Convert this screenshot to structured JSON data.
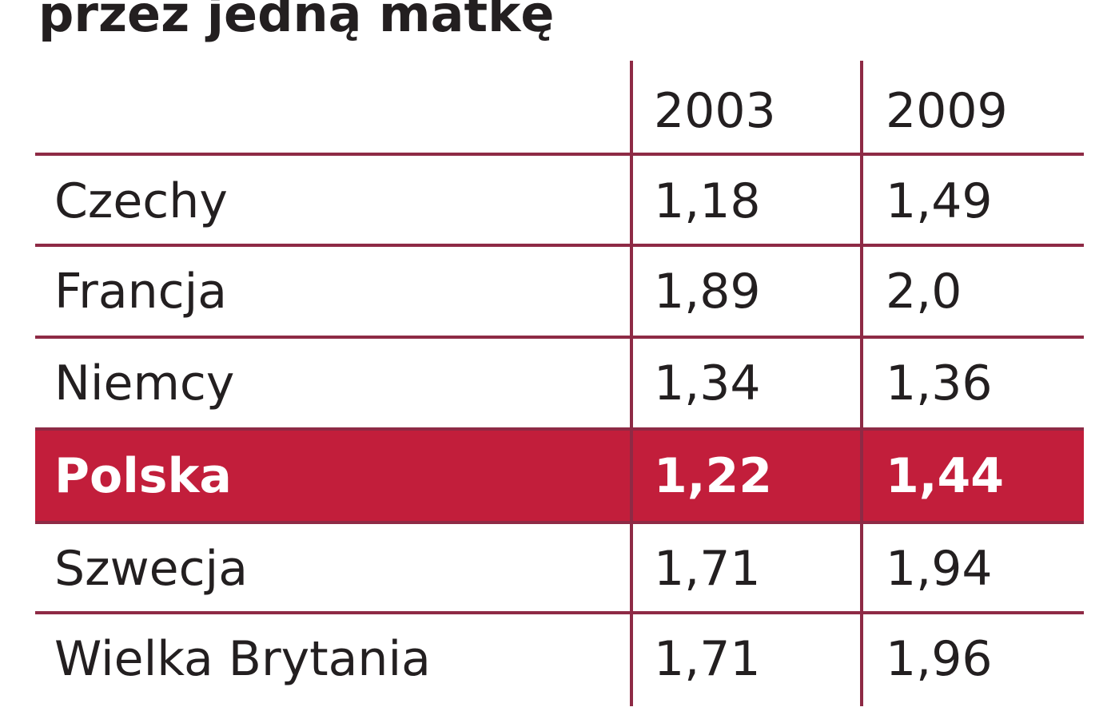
{
  "chart_data": {
    "type": "table",
    "title": "przez jedną matkę",
    "columns": [
      "",
      "2003",
      "2009"
    ],
    "rows": [
      {
        "country": "Czechy",
        "v2003": "1,18",
        "v2009": "1,49",
        "highlight": false
      },
      {
        "country": "Francja",
        "v2003": "1,89",
        "v2009": "2,0",
        "highlight": false
      },
      {
        "country": "Niemcy",
        "v2003": "1,34",
        "v2009": "1,36",
        "highlight": false
      },
      {
        "country": "Polska",
        "v2003": "1,22",
        "v2009": "1,44",
        "highlight": true
      },
      {
        "country": "Szwecja",
        "v2003": "1,71",
        "v2009": "1,94",
        "highlight": false
      },
      {
        "country": "Wielka Brytania",
        "v2003": "1,71",
        "v2009": "1,96",
        "highlight": false
      }
    ]
  },
  "colors": {
    "rule": "#8e2a45",
    "highlight": "#c21e3b",
    "text": "#231f20",
    "highlight_text": "#ffffff"
  }
}
